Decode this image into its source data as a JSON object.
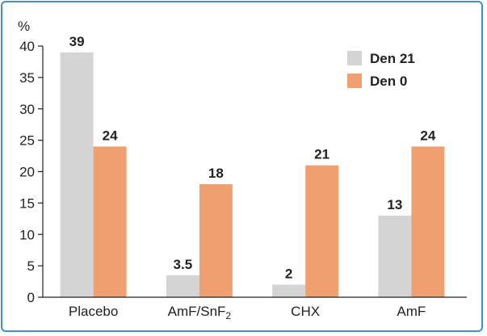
{
  "chart_data": {
    "type": "bar",
    "ylabel": "%",
    "ylim": [
      0,
      40
    ],
    "yticks": [
      0,
      5,
      10,
      15,
      20,
      25,
      30,
      35,
      40
    ],
    "categories": [
      "Placebo",
      "AmF/SnF",
      "CHX",
      "AmF"
    ],
    "category_subscripts": [
      "",
      "2",
      "",
      ""
    ],
    "series": [
      {
        "name": "Den 21",
        "color": "#d4d4d4",
        "values": [
          39,
          3.5,
          2,
          13
        ],
        "labels": [
          "39",
          "3.5",
          "2",
          "13"
        ]
      },
      {
        "name": "Den 0",
        "color": "#f0a070",
        "values": [
          24,
          18,
          21,
          24
        ],
        "labels": [
          "24",
          "18",
          "21",
          "24"
        ]
      }
    ],
    "legend_position": "top-right",
    "grid": false
  }
}
